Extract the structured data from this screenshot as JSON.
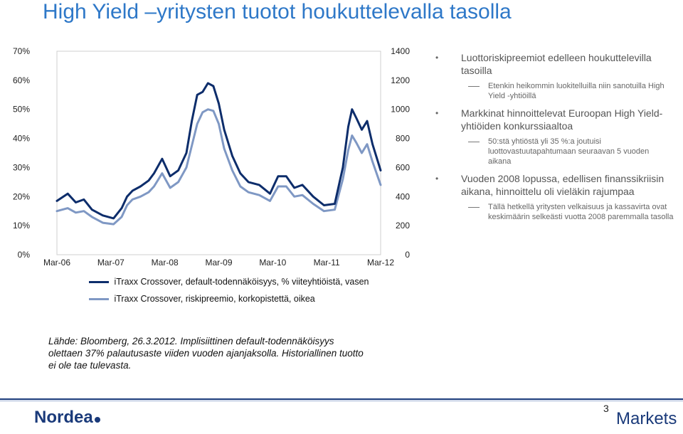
{
  "title": "High Yield –yritysten tuotot houkuttelevalla tasolla",
  "chart_data": {
    "type": "line",
    "x_ticks": [
      "Mar-06",
      "Mar-07",
      "Mar-08",
      "Mar-09",
      "Mar-10",
      "Mar-11",
      "Mar-12"
    ],
    "x_range": [
      2006.25,
      2012.25
    ],
    "y_left_ticks": [
      "0%",
      "10%",
      "20%",
      "30%",
      "40%",
      "50%",
      "60%",
      "70%"
    ],
    "y_left_range": [
      0,
      70
    ],
    "y_right_ticks": [
      "0",
      "200",
      "400",
      "600",
      "800",
      "1000",
      "1200",
      "1400"
    ],
    "y_right_range": [
      0,
      1400
    ],
    "series": [
      {
        "name": "iTraxx Crossover, default-todennäköisyys, % viiteyhtiöistä, vasen",
        "axis": "left",
        "color": "#0d2d6b",
        "x": [
          2006.25,
          2006.45,
          2006.6,
          2006.75,
          2006.9,
          2007.1,
          2007.3,
          2007.45,
          2007.55,
          2007.65,
          2007.8,
          2007.95,
          2008.05,
          2008.2,
          2008.35,
          2008.5,
          2008.65,
          2008.75,
          2008.85,
          2008.95,
          2009.05,
          2009.15,
          2009.25,
          2009.35,
          2009.5,
          2009.65,
          2009.8,
          2010.0,
          2010.2,
          2010.35,
          2010.5,
          2010.65,
          2010.8,
          2011.0,
          2011.2,
          2011.4,
          2011.55,
          2011.65,
          2011.72,
          2011.8,
          2011.9,
          2012.0,
          2012.1,
          2012.25
        ],
        "y": [
          18.5,
          21,
          18,
          19,
          15.5,
          13.5,
          12.5,
          16,
          20,
          22,
          23.5,
          25.5,
          28,
          33,
          27,
          29,
          35,
          46,
          55,
          56,
          59,
          58,
          52,
          43,
          34,
          28,
          25,
          24,
          21,
          27,
          27,
          23,
          24,
          20,
          17,
          17.5,
          30,
          44,
          50,
          47,
          43,
          46,
          38,
          29
        ]
      },
      {
        "name": "iTraxx Crossover, riskipreemio, korkopistettä, oikea",
        "axis": "right",
        "color": "#7f98c4",
        "x": [
          2006.25,
          2006.45,
          2006.6,
          2006.75,
          2006.9,
          2007.1,
          2007.3,
          2007.45,
          2007.55,
          2007.65,
          2007.8,
          2007.95,
          2008.05,
          2008.2,
          2008.35,
          2008.5,
          2008.65,
          2008.75,
          2008.85,
          2008.95,
          2009.05,
          2009.15,
          2009.25,
          2009.35,
          2009.5,
          2009.65,
          2009.8,
          2010.0,
          2010.2,
          2010.35,
          2010.5,
          2010.65,
          2010.8,
          2011.0,
          2011.2,
          2011.4,
          2011.55,
          2011.65,
          2011.72,
          2011.8,
          2011.9,
          2012.0,
          2012.1,
          2012.25
        ],
        "y": [
          300,
          320,
          290,
          300,
          260,
          220,
          210,
          260,
          340,
          380,
          400,
          430,
          470,
          560,
          460,
          500,
          600,
          750,
          900,
          980,
          1000,
          990,
          900,
          730,
          580,
          470,
          430,
          410,
          370,
          470,
          470,
          400,
          410,
          350,
          300,
          310,
          520,
          720,
          820,
          770,
          700,
          760,
          640,
          480
        ]
      }
    ]
  },
  "legend": [
    {
      "label": "iTraxx Crossover, default-todennäköisyys, % viiteyhtiöistä, vasen",
      "color": "#0d2d6b"
    },
    {
      "label": "iTraxx Crossover, riskipreemio, korkopistettä, oikea",
      "color": "#7f98c4"
    }
  ],
  "bullets": [
    {
      "text": "Luottoriskipreemiot edelleen houkuttelevilla tasoilla",
      "sub": "Etenkin heikommin luokitelluilla niin sanotuilla High Yield -yhtiöillä"
    },
    {
      "text": "Markkinat hinnoittelevat Euroopan High Yield-yhtiöiden konkurssiaaltoa",
      "sub": "50:stä yhtiöstä yli 35 %:a joutuisi luottovastuutapahtumaan seuraavan 5 vuoden aikana"
    },
    {
      "text": "Vuoden 2008 lopussa, edellisen finanssikriisin aikana, hinnoittelu oli vieläkin rajumpaa",
      "sub": "Tällä hetkellä yritysten velkaisuus ja kassavirta ovat keskimäärin selkeästi vuotta 2008 paremmalla tasolla"
    }
  ],
  "source": "Lähde: Bloomberg, 26.3.2012. Implisiittinen default-todennäköisyys olettaen 37% palautusaste viiden vuoden ajanjaksolla. Historiallinen tuotto ei ole tae tulevasta.",
  "footer": {
    "logo_text": "Nordea",
    "page_number": "3",
    "brand": "Markets"
  }
}
